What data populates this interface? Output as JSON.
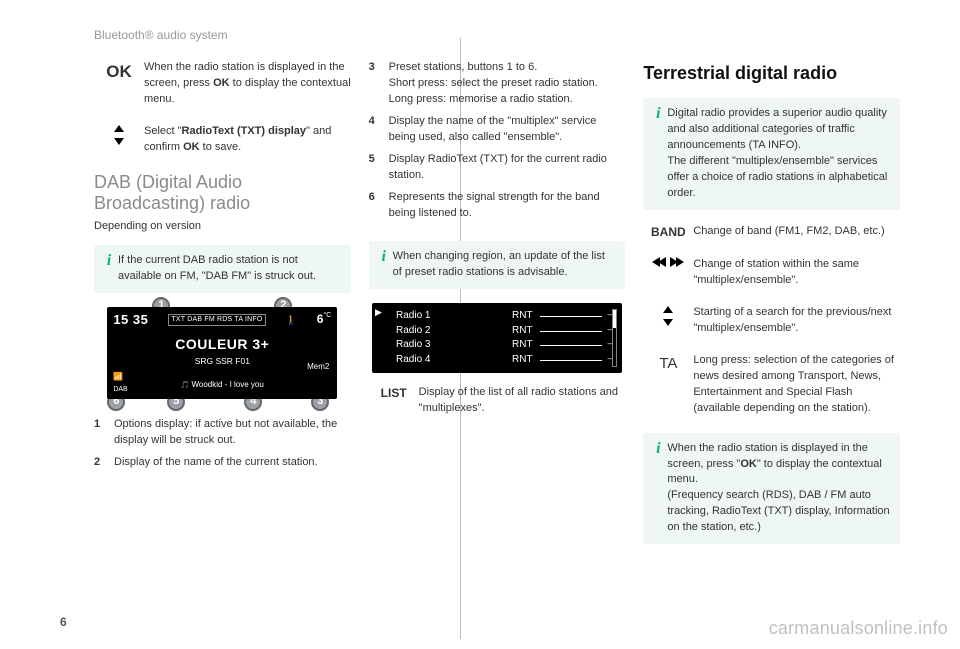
{
  "header": "Bluetooth® audio system",
  "page_no": "6",
  "watermark": "carmanualsonline.info",
  "col1": {
    "ok_label": "OK",
    "ok_text_pre": "When the radio station is displayed in the screen, press ",
    "ok_text_bold": "OK",
    "ok_text_post": " to display the contextual menu.",
    "updown_pre": "Select \"",
    "updown_bold": "RadioText (TXT) display",
    "updown_mid": "\" and confirm ",
    "updown_bold2": "OK",
    "updown_post": " to save.",
    "h2": "DAB (Digital Audio Broadcasting) radio",
    "dep": "Depending on version",
    "info1": "If the current DAB radio station is not available on FM, \"DAB FM\" is struck out.",
    "screen": {
      "time": "15 35",
      "tags": "TXT  DAB FM RDS TA INFO",
      "temp": "6",
      "temp_unit": "°C",
      "person": "🚶",
      "title": "COULEUR 3+",
      "sub": "SRG SSR F01",
      "mem": "Mem2",
      "track": "Woodkid - I love you",
      "sig": "📶",
      "dab": "DAB",
      "callouts": {
        "1": "1",
        "2": "2",
        "3": "3",
        "4": "4",
        "5": "5",
        "6": "6"
      }
    },
    "list": [
      {
        "n": "1",
        "t": "Options display: if active but not available, the display will be struck out."
      },
      {
        "n": "2",
        "t": "Display of the name of the current station."
      }
    ]
  },
  "col2": {
    "list": [
      {
        "n": "3",
        "t": "Preset stations, buttons 1 to 6.\nShort press: select the preset radio station.\nLong press: memorise a radio station."
      },
      {
        "n": "4",
        "t": "Display the name of the \"multiplex\" service being used, also called \"ensemble\"."
      },
      {
        "n": "5",
        "t": "Display RadioText (TXT) for the current radio station."
      },
      {
        "n": "6",
        "t": "Represents the signal strength for the band being listened to."
      }
    ],
    "info2": "When changing region, an update of the list of preset radio stations is advisable.",
    "radios": [
      {
        "name": "Radio 1",
        "code": "RNT"
      },
      {
        "name": "Radio 2",
        "code": "RNT"
      },
      {
        "name": "Radio 3",
        "code": "RNT"
      },
      {
        "name": "Radio 4",
        "code": "RNT"
      }
    ],
    "list_label": "LIST",
    "list_text": "Display of the list of all radio stations and \"multiplexes\"."
  },
  "col3": {
    "h1": "Terrestrial digital radio",
    "info3": "Digital radio provides a superior audio quality and also additional categories of traffic announcements (TA INFO).\nThe different \"multiplex/ensemble\" services offer a choice of radio stations in alphabetical order.",
    "band_label": "BAND",
    "band_text": "Change of band (FM1, FM2, DAB, etc.)",
    "seek_text": "Change of station within the same \"multiplex/ensemble\".",
    "updown_text": "Starting of a search for the previous/next \"multiplex/ensemble\".",
    "ta_label": "TA",
    "ta_text": "Long press: selection of the categories of news desired among Transport, News, Entertainment and Special Flash (available depending on the station).",
    "info4": "When the radio station is displayed in the screen, press \"OK\" to display the contextual menu.\n(Frequency search (RDS), DAB / FM auto tracking, RadioText (TXT) display, Information on the station, etc.)",
    "info4_bold": "OK"
  }
}
